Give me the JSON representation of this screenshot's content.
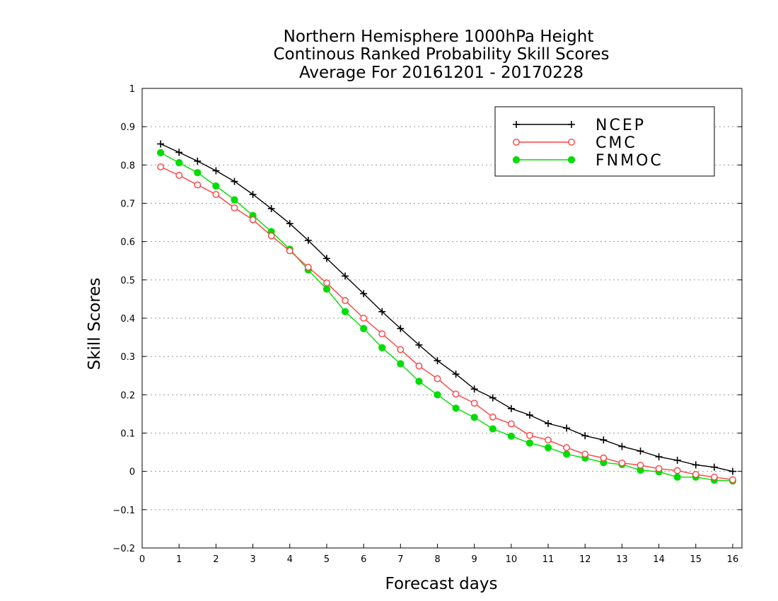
{
  "chart_data": {
    "type": "line",
    "title": [
      "Northern Hemisphere 1000hPa Height",
      "Continous Ranked Probability Skill Scores",
      "Average For 20161201 - 20170228"
    ],
    "xlabel": "Forecast days",
    "ylabel": "Skill Scores",
    "xlim": [
      0,
      16.25
    ],
    "ylim": [
      -0.2,
      1
    ],
    "x_ticks": [
      0,
      1,
      2,
      3,
      4,
      5,
      6,
      7,
      8,
      9,
      10,
      11,
      12,
      13,
      14,
      15,
      16
    ],
    "y_ticks": [
      -0.2,
      -0.1,
      0,
      0.1,
      0.2,
      0.3,
      0.4,
      0.5,
      0.6,
      0.7,
      0.8,
      0.9,
      1
    ],
    "x_tick_labels": [
      "0",
      "1",
      "2",
      "3",
      "4",
      "5",
      "6",
      "7",
      "8",
      "9",
      "10",
      "11",
      "12",
      "13",
      "14",
      "15",
      "16"
    ],
    "y_tick_labels": [
      "−0.2",
      "−0.1",
      "0",
      "0.1",
      "0.2",
      "0.3",
      "0.4",
      "0.5",
      "0.6",
      "0.7",
      "0.8",
      "0.9",
      "1"
    ],
    "grid": "horizontal dotted",
    "legend_position": "top-right",
    "x": [
      0.5,
      1,
      1.5,
      2,
      2.5,
      3,
      3.5,
      4,
      4.5,
      5,
      5.5,
      6,
      6.5,
      7,
      7.5,
      8,
      8.5,
      9,
      9.5,
      10,
      10.5,
      11,
      11.5,
      12,
      12.5,
      13,
      13.5,
      14,
      14.5,
      15,
      15.5,
      16
    ],
    "series": [
      {
        "name": "NCEP",
        "color": "#000000",
        "marker": "plus",
        "values": [
          0.855,
          0.833,
          0.81,
          0.785,
          0.757,
          0.723,
          0.686,
          0.647,
          0.603,
          0.556,
          0.51,
          0.464,
          0.417,
          0.373,
          0.33,
          0.289,
          0.254,
          0.215,
          0.192,
          0.164,
          0.147,
          0.125,
          0.113,
          0.093,
          0.082,
          0.065,
          0.053,
          0.038,
          0.029,
          0.017,
          0.011,
          0.0
        ]
      },
      {
        "name": "CMC",
        "color": "#ff4040",
        "marker": "open-circle",
        "values": [
          0.795,
          0.773,
          0.748,
          0.723,
          0.688,
          0.657,
          0.615,
          0.576,
          0.533,
          0.492,
          0.446,
          0.4,
          0.359,
          0.318,
          0.275,
          0.242,
          0.202,
          0.178,
          0.142,
          0.124,
          0.094,
          0.082,
          0.062,
          0.045,
          0.035,
          0.022,
          0.016,
          0.007,
          0.002,
          -0.008,
          -0.015,
          -0.022
        ]
      },
      {
        "name": "FNMOC",
        "color": "#00dd00",
        "marker": "filled-circle",
        "values": [
          0.832,
          0.806,
          0.78,
          0.745,
          0.709,
          0.668,
          0.626,
          0.58,
          0.526,
          0.476,
          0.417,
          0.373,
          0.323,
          0.281,
          0.235,
          0.2,
          0.165,
          0.141,
          0.111,
          0.092,
          0.074,
          0.062,
          0.045,
          0.035,
          0.023,
          0.018,
          0.003,
          -0.001,
          -0.015,
          -0.015,
          -0.023,
          -0.025
        ]
      }
    ]
  }
}
